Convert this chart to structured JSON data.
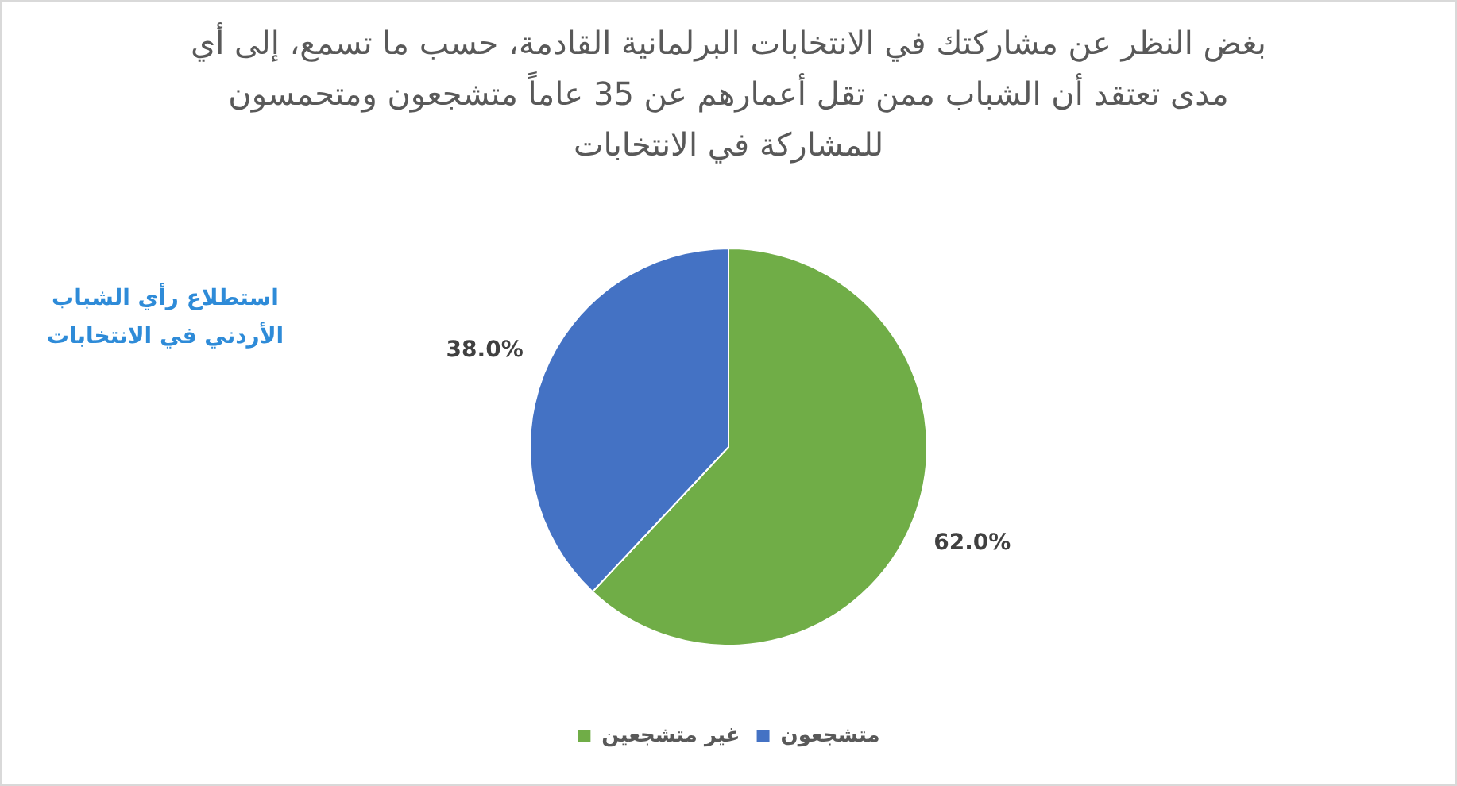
{
  "chart_data": {
    "type": "pie",
    "title": "بغض النظر عن مشاركتك في الانتخابات البرلمانية القادمة، حسب ما تسمع، إلى أي مدى تعتقد أن الشباب ممن تقل أعمارهم عن 35 عاماً متشجعون ومتحمسون للمشاركة في الانتخابات",
    "annotations": [
      "استطلاع رأي الشباب الأردني في الانتخابات"
    ],
    "categories": [
      "غير متشجعين",
      "متشجعون"
    ],
    "values": [
      62,
      38
    ],
    "colors": [
      "#70ad47",
      "#4472c4"
    ],
    "value_labels": [
      "62.0%",
      "38.0%"
    ],
    "legend": "bottom"
  }
}
